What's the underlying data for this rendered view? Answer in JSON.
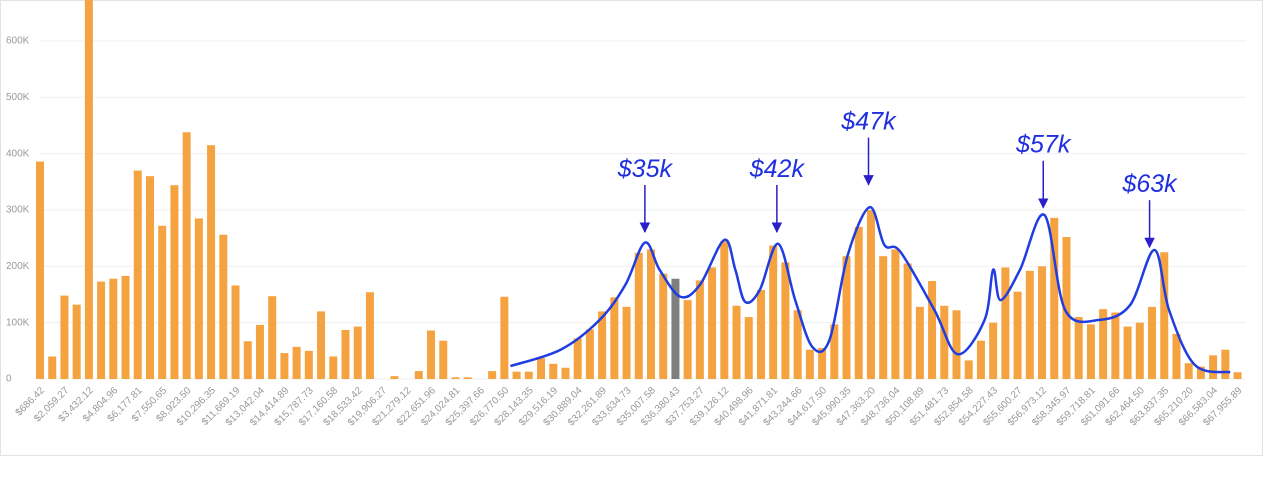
{
  "chart_data": {
    "type": "bar",
    "categories": [
      "$686.42",
      null,
      "$2,059.27",
      null,
      "$3,432.12",
      null,
      "$4,804.96",
      null,
      "$6,177.81",
      null,
      "$7,550.65",
      null,
      "$8,923.50",
      null,
      "$10,296.35",
      null,
      "$11,669.19",
      null,
      "$13,042.04",
      null,
      "$14,414.89",
      null,
      "$15,787.73",
      null,
      "$17,160.58",
      null,
      "$18,533.42",
      null,
      "$19,906.27",
      null,
      "$21,279.12",
      null,
      "$22,651.96",
      null,
      "$24,024.81",
      null,
      "$25,397.66",
      null,
      "$26,770.50",
      null,
      "$28,143.35",
      null,
      "$29,516.19",
      null,
      "$30,889.04",
      null,
      "$32,261.89",
      null,
      "$33,634.73",
      null,
      "$35,007.58",
      null,
      "$36,380.43",
      null,
      "$37,753.27",
      null,
      "$39,126.12",
      null,
      "$40,498.96",
      null,
      "$41,871.81",
      null,
      "$43,244.66",
      null,
      "$44,617.50",
      null,
      "$45,990.35",
      null,
      "$47,363.20",
      null,
      "$48,736.04",
      null,
      "$50,108.89",
      null,
      "$51,481.73",
      null,
      "$52,854.58",
      null,
      "$54,227.43",
      null,
      "$55,600.27",
      null,
      "$56,973.12",
      null,
      "$58,345.97",
      null,
      "$59,718.81",
      null,
      "$61,091.66",
      null,
      "$62,464.50",
      null,
      "$63,837.35",
      null,
      "$65,210.20",
      null,
      "$66,583.04",
      null,
      "$67,955.89"
    ],
    "values": [
      386000,
      40000,
      148000,
      132000,
      680000,
      173000,
      178000,
      183000,
      370000,
      360000,
      272000,
      344000,
      438000,
      285000,
      415000,
      256000,
      166000,
      67000,
      96000,
      147000,
      46000,
      57000,
      50000,
      120000,
      40000,
      87000,
      93000,
      154000,
      0,
      5000,
      0,
      14000,
      86000,
      68000,
      3000,
      3000,
      0,
      14000,
      146000,
      13000,
      13000,
      37000,
      27000,
      20000,
      72000,
      88000,
      120000,
      145000,
      128000,
      224000,
      230000,
      187000,
      178000,
      140000,
      175000,
      198000,
      245000,
      130000,
      110000,
      158000,
      237000,
      207000,
      122000,
      52000,
      55000,
      97000,
      218000,
      270000,
      300000,
      218000,
      230000,
      205000,
      128000,
      174000,
      130000,
      122000,
      33000,
      68000,
      100000,
      198000,
      155000,
      192000,
      200000,
      286000,
      252000,
      110000,
      97000,
      124000,
      118000,
      93000,
      100000,
      128000,
      225000,
      80000,
      28000,
      22000,
      42000,
      52000,
      12000
    ],
    "color": "#f5a340",
    "highlight": {
      "index": 52,
      "color": "#7f7f7f"
    },
    "ylim": [
      0,
      672000
    ],
    "yticks": [
      {
        "value": 0,
        "label": "0"
      },
      {
        "value": 100000,
        "label": "100K"
      },
      {
        "value": 200000,
        "label": "200K"
      },
      {
        "value": 300000,
        "label": "300K"
      },
      {
        "value": 400000,
        "label": "400K"
      },
      {
        "value": 500000,
        "label": "500K"
      },
      {
        "value": 600000,
        "label": "600K"
      }
    ],
    "grid": true,
    "curve": {
      "color": "#1f3de0",
      "x": [
        38.5,
        42.6,
        45.8,
        47.9,
        49.5,
        50.7,
        52.4,
        54,
        56,
        56.9,
        57.7,
        58.9,
        60.4,
        61.8,
        63.2,
        64.6,
        66.1,
        67.9,
        69.1,
        70.4,
        73.2,
        75.1,
        77.3,
        78,
        78.6,
        80.2,
        82.2,
        83.9,
        86.7,
        89.2,
        91.2,
        92.4,
        94.5,
        97.4
      ],
      "values": [
        23000,
        52000,
        105000,
        167000,
        242000,
        194000,
        146000,
        167000,
        247000,
        194000,
        137000,
        158000,
        240000,
        140000,
        57000,
        69000,
        220000,
        305000,
        238000,
        226000,
        122000,
        44000,
        105000,
        194000,
        140000,
        194000,
        291000,
        122000,
        105000,
        131000,
        229000,
        122000,
        25000,
        12000
      ]
    },
    "annotations": [
      {
        "text": "$35k",
        "x": 49.5,
        "y": 261000
      },
      {
        "text": "$42k",
        "x": 60.3,
        "y": 261000
      },
      {
        "text": "$47k",
        "x": 67.8,
        "y": 345000
      },
      {
        "text": "$57k",
        "x": 82.1,
        "y": 304000
      },
      {
        "text": "$63k",
        "x": 90.8,
        "y": 234000
      }
    ]
  }
}
